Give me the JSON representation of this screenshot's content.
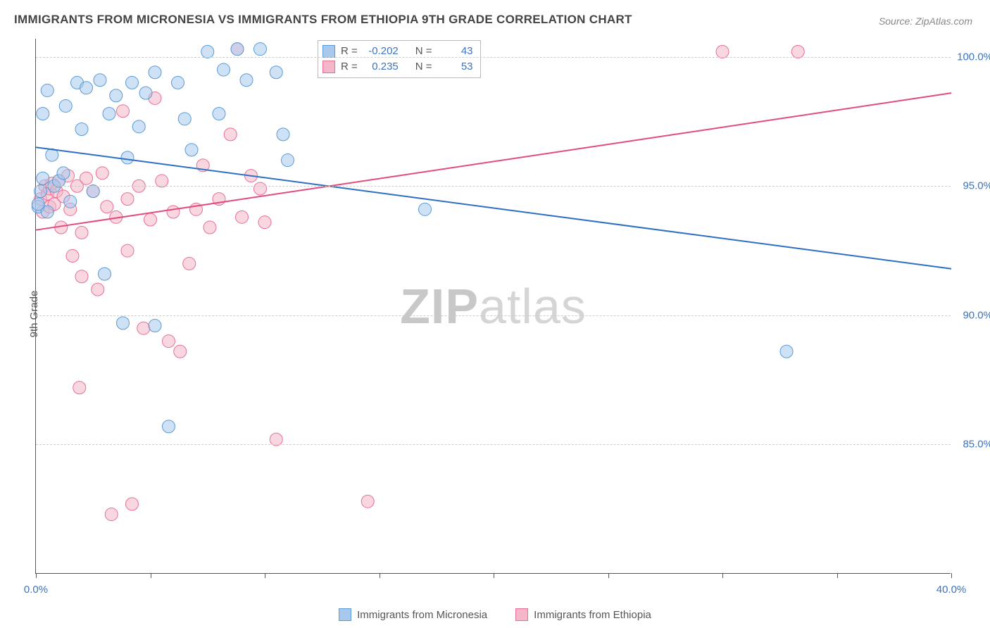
{
  "title": "IMMIGRANTS FROM MICRONESIA VS IMMIGRANTS FROM ETHIOPIA 9TH GRADE CORRELATION CHART",
  "source": "Source: ZipAtlas.com",
  "ylabel": "9th Grade",
  "watermark_bold": "ZIP",
  "watermark_light": "atlas",
  "chart": {
    "type": "scatter",
    "xlim": [
      0,
      40
    ],
    "ylim": [
      80,
      100.7
    ],
    "xticks": [
      0,
      5,
      10,
      15,
      20,
      25,
      30,
      35,
      40
    ],
    "xtick_labels": {
      "0": "0.0%",
      "40": "40.0%"
    },
    "yticks": [
      85,
      90,
      95,
      100
    ],
    "ytick_labels": [
      "85.0%",
      "90.0%",
      "95.0%",
      "100.0%"
    ],
    "background_color": "#ffffff",
    "grid_color": "#cccccc",
    "axis_color": "#555555",
    "series": [
      {
        "name": "Immigrants from Micronesia",
        "short": "micronesia",
        "fill": "#a8c9ec",
        "stroke": "#5a9bd5",
        "fill_opacity": 0.55,
        "marker_radius": 9,
        "R": "-0.202",
        "N": "43",
        "regression": {
          "x1": 0,
          "y1": 96.5,
          "x2": 40,
          "y2": 91.8,
          "color": "#2d6fc1",
          "width": 2
        },
        "points": [
          [
            0.1,
            94.2
          ],
          [
            0.2,
            94.8
          ],
          [
            0.3,
            95.3
          ],
          [
            0.3,
            97.8
          ],
          [
            0.5,
            98.7
          ],
          [
            0.5,
            94.0
          ],
          [
            0.7,
            96.2
          ],
          [
            0.8,
            95.0
          ],
          [
            1.0,
            95.2
          ],
          [
            1.2,
            95.5
          ],
          [
            1.3,
            98.1
          ],
          [
            1.5,
            94.4
          ],
          [
            1.8,
            99.0
          ],
          [
            2.0,
            97.2
          ],
          [
            2.2,
            98.8
          ],
          [
            2.5,
            94.8
          ],
          [
            2.8,
            99.1
          ],
          [
            3.0,
            91.6
          ],
          [
            3.2,
            97.8
          ],
          [
            3.5,
            98.5
          ],
          [
            3.8,
            89.7
          ],
          [
            4.0,
            96.1
          ],
          [
            4.2,
            99.0
          ],
          [
            4.5,
            97.3
          ],
          [
            4.8,
            98.6
          ],
          [
            5.2,
            99.4
          ],
          [
            5.8,
            85.7
          ],
          [
            6.2,
            99.0
          ],
          [
            6.5,
            97.6
          ],
          [
            6.8,
            96.4
          ],
          [
            7.5,
            100.2
          ],
          [
            8.0,
            97.8
          ],
          [
            8.2,
            99.5
          ],
          [
            8.8,
            100.3
          ],
          [
            9.2,
            99.1
          ],
          [
            9.8,
            100.3
          ],
          [
            10.5,
            99.4
          ],
          [
            10.8,
            97.0
          ],
          [
            11.0,
            96.0
          ],
          [
            5.2,
            89.6
          ],
          [
            17.0,
            94.1
          ],
          [
            32.8,
            88.6
          ],
          [
            0.1,
            94.3
          ]
        ]
      },
      {
        "name": "Immigrants from Ethiopia",
        "short": "ethiopia",
        "fill": "#f4b6c8",
        "stroke": "#e86f94",
        "fill_opacity": 0.55,
        "marker_radius": 9,
        "R": "0.235",
        "N": "53",
        "regression": {
          "x1": 0,
          "y1": 93.3,
          "x2": 40,
          "y2": 98.6,
          "color": "#e34b7a",
          "width": 2
        },
        "points": [
          [
            0.2,
            94.5
          ],
          [
            0.3,
            94.0
          ],
          [
            0.4,
            95.0
          ],
          [
            0.5,
            94.7
          ],
          [
            0.6,
            94.9
          ],
          [
            0.6,
            94.2
          ],
          [
            0.7,
            95.1
          ],
          [
            0.8,
            94.3
          ],
          [
            0.9,
            94.8
          ],
          [
            1.0,
            95.2
          ],
          [
            1.1,
            93.4
          ],
          [
            1.2,
            94.6
          ],
          [
            1.4,
            95.4
          ],
          [
            1.5,
            94.1
          ],
          [
            1.6,
            92.3
          ],
          [
            1.8,
            95.0
          ],
          [
            1.9,
            87.2
          ],
          [
            2.0,
            93.2
          ],
          [
            2.2,
            95.3
          ],
          [
            2.5,
            94.8
          ],
          [
            2.7,
            91.0
          ],
          [
            2.9,
            95.5
          ],
          [
            3.1,
            94.2
          ],
          [
            3.3,
            82.3
          ],
          [
            3.5,
            93.8
          ],
          [
            3.8,
            97.9
          ],
          [
            4.0,
            94.5
          ],
          [
            4.2,
            82.7
          ],
          [
            4.5,
            95.0
          ],
          [
            4.7,
            89.5
          ],
          [
            5.0,
            93.7
          ],
          [
            5.2,
            98.4
          ],
          [
            5.5,
            95.2
          ],
          [
            5.8,
            89.0
          ],
          [
            6.0,
            94.0
          ],
          [
            6.3,
            88.6
          ],
          [
            6.7,
            92.0
          ],
          [
            7.0,
            94.1
          ],
          [
            7.3,
            95.8
          ],
          [
            7.6,
            93.4
          ],
          [
            8.0,
            94.5
          ],
          [
            8.5,
            97.0
          ],
          [
            8.8,
            100.3
          ],
          [
            9.0,
            93.8
          ],
          [
            9.4,
            95.4
          ],
          [
            9.8,
            94.9
          ],
          [
            10.0,
            93.6
          ],
          [
            10.5,
            85.2
          ],
          [
            14.5,
            82.8
          ],
          [
            30.0,
            100.2
          ],
          [
            33.3,
            100.2
          ],
          [
            4.0,
            92.5
          ],
          [
            2.0,
            91.5
          ]
        ]
      }
    ]
  },
  "stats_labels": {
    "R": "R =",
    "N": "N ="
  },
  "legend_labels": {
    "micronesia": "Immigrants from Micronesia",
    "ethiopia": "Immigrants from Ethiopia"
  }
}
